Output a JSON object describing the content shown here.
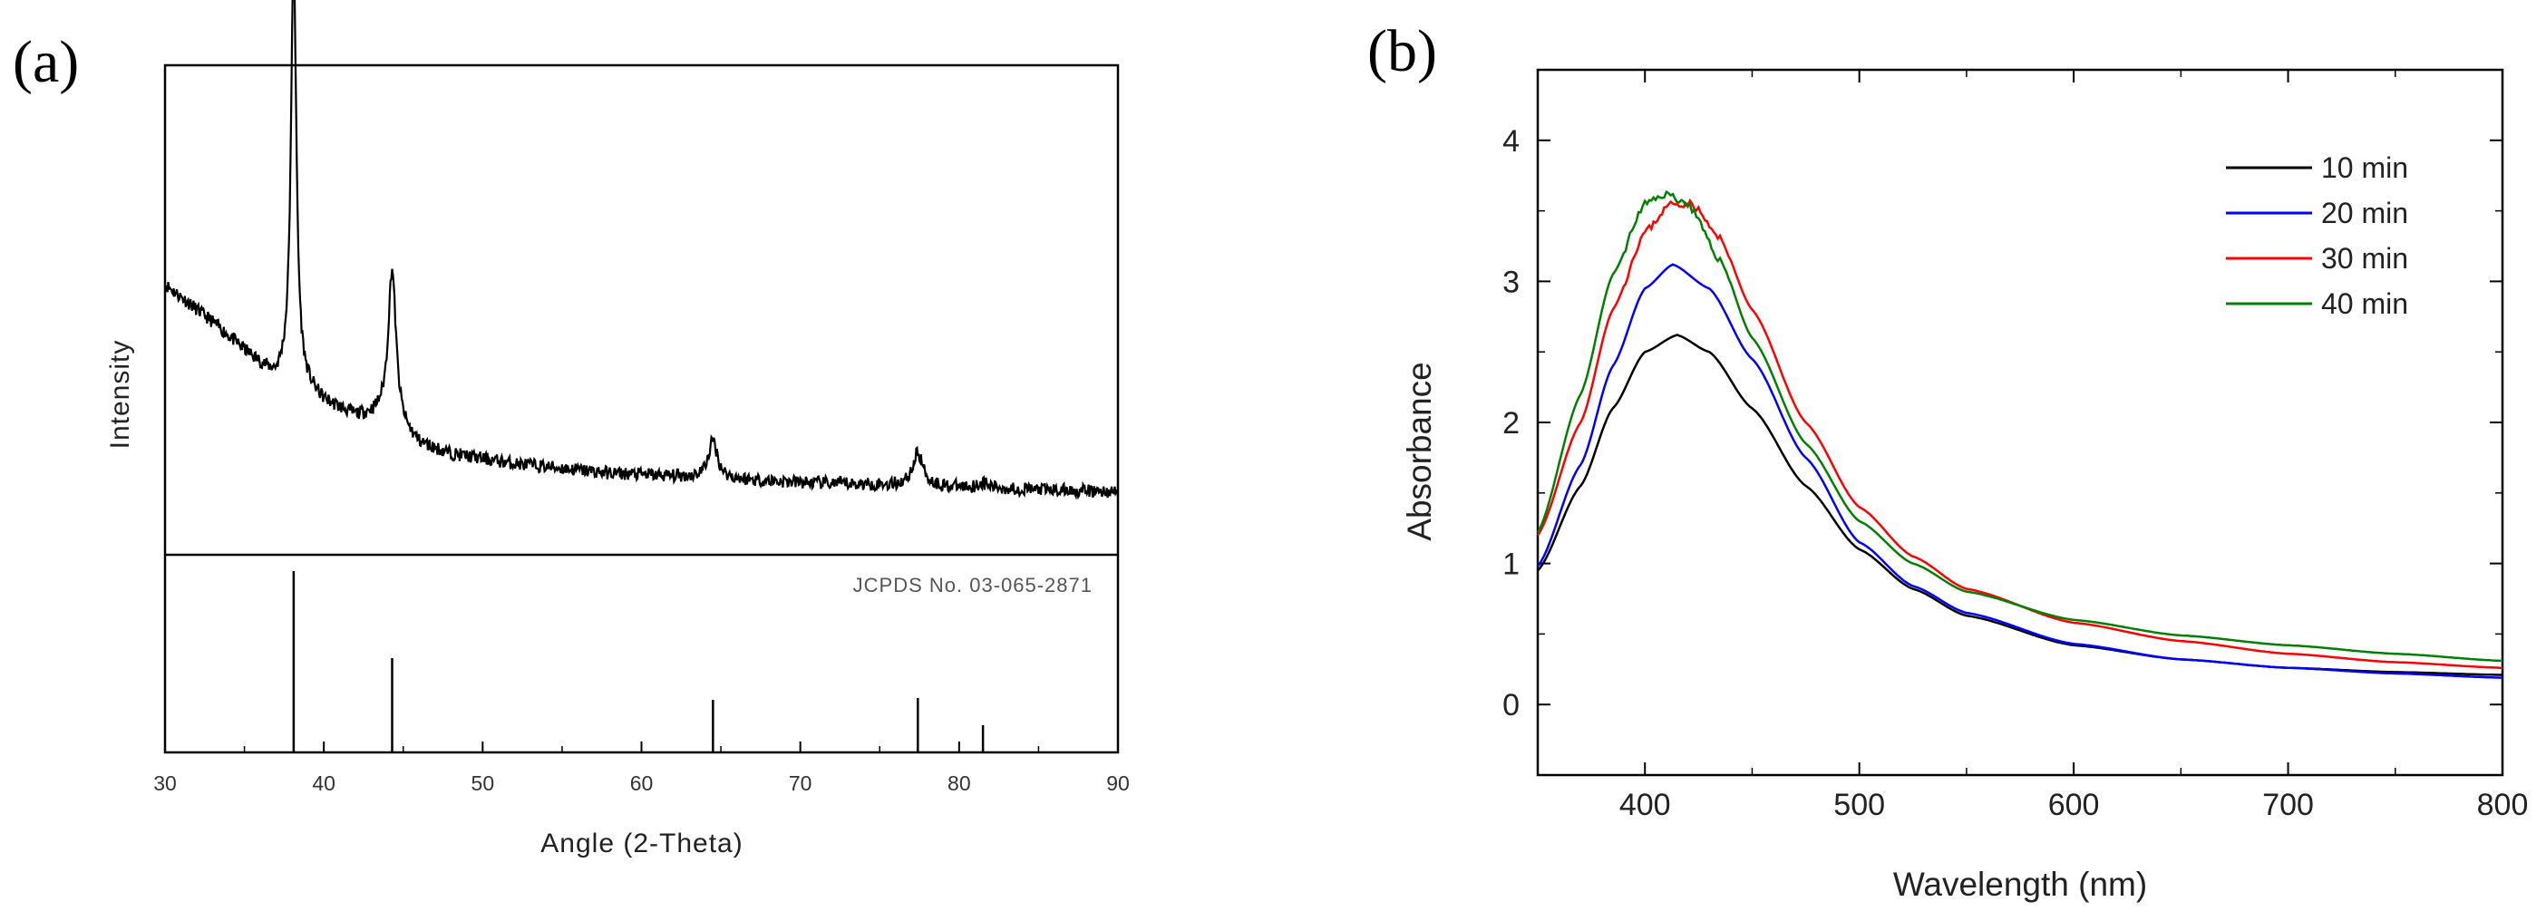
{
  "chart_data": [
    {
      "panel_label": "(a)",
      "type": "line",
      "subtype": "xrd-pattern-with-reference-sticks",
      "xlabel": "Angle (2-Theta)",
      "ylabel": "Intensity",
      "xlim": [
        30,
        90
      ],
      "x_ticks": [
        30,
        40,
        50,
        60,
        70,
        80,
        90
      ],
      "y_ticks_shown": false,
      "baseline": [
        [
          30,
          0.3
        ],
        [
          33,
          0.22
        ],
        [
          35,
          0.16
        ],
        [
          37,
          0.1
        ],
        [
          37.8,
          0.11
        ],
        [
          40,
          0.05
        ],
        [
          42,
          0.02
        ],
        [
          43.6,
          0.02
        ],
        [
          46,
          -0.04
        ],
        [
          48,
          -0.06
        ],
        [
          52,
          -0.08
        ],
        [
          58,
          -0.1
        ],
        [
          64,
          -0.11
        ],
        [
          70,
          -0.12
        ],
        [
          80,
          -0.13
        ],
        [
          90,
          -0.14
        ]
      ],
      "peaks": [
        {
          "two_theta": 38.1,
          "height": 0.9,
          "width": 0.2
        },
        {
          "two_theta": 44.3,
          "height": 0.33,
          "width": 0.3
        },
        {
          "two_theta": 64.5,
          "height": 0.08,
          "width": 0.35
        },
        {
          "two_theta": 77.4,
          "height": 0.07,
          "width": 0.4
        },
        {
          "two_theta": 81.5,
          "height": 0.01,
          "width": 0.4
        }
      ],
      "reference": {
        "label": "JCPDS No. 03-065-2871",
        "sticks": [
          {
            "two_theta": 38.1,
            "intensity": 100
          },
          {
            "two_theta": 44.3,
            "intensity": 52
          },
          {
            "two_theta": 64.5,
            "intensity": 29
          },
          {
            "two_theta": 77.4,
            "intensity": 30
          },
          {
            "two_theta": 81.5,
            "intensity": 15
          }
        ]
      }
    },
    {
      "panel_label": "(b)",
      "type": "line",
      "xlabel": "Wavelength (nm)",
      "ylabel": "Absorbance",
      "xlim": [
        350,
        800
      ],
      "ylim": [
        -0.5,
        4.5
      ],
      "x_ticks": [
        400,
        500,
        600,
        700,
        800
      ],
      "y_ticks": [
        0,
        1,
        2,
        3,
        4
      ],
      "legend_position": "top-right",
      "series": [
        {
          "name": "10 min",
          "color": "#000000",
          "x": [
            350,
            370,
            385,
            400,
            415,
            430,
            450,
            475,
            500,
            525,
            550,
            600,
            650,
            700,
            750,
            800
          ],
          "y": [
            0.95,
            1.55,
            2.1,
            2.5,
            2.62,
            2.5,
            2.1,
            1.55,
            1.1,
            0.82,
            0.63,
            0.42,
            0.32,
            0.26,
            0.23,
            0.21
          ]
        },
        {
          "name": "20 min",
          "color": "#0000ff",
          "x": [
            350,
            370,
            385,
            400,
            413,
            430,
            450,
            475,
            500,
            525,
            550,
            600,
            650,
            700,
            750,
            800
          ],
          "y": [
            0.98,
            1.7,
            2.4,
            2.95,
            3.12,
            2.95,
            2.45,
            1.75,
            1.15,
            0.84,
            0.65,
            0.43,
            0.32,
            0.26,
            0.22,
            0.19
          ]
        },
        {
          "name": "30 min",
          "color": "#ff0000",
          "x": [
            350,
            370,
            385,
            400,
            412,
            422,
            435,
            450,
            475,
            500,
            525,
            550,
            600,
            650,
            700,
            750,
            800
          ],
          "y": [
            1.2,
            2.0,
            2.8,
            3.35,
            3.55,
            3.55,
            3.3,
            2.8,
            2.0,
            1.4,
            1.05,
            0.82,
            0.58,
            0.45,
            0.36,
            0.3,
            0.26
          ]
        },
        {
          "name": "40 min",
          "color": "#008000",
          "x": [
            350,
            370,
            385,
            400,
            410,
            420,
            435,
            450,
            475,
            500,
            525,
            550,
            600,
            650,
            700,
            750,
            800
          ],
          "y": [
            1.22,
            2.2,
            3.05,
            3.55,
            3.62,
            3.55,
            3.15,
            2.6,
            1.85,
            1.3,
            1.0,
            0.8,
            0.6,
            0.49,
            0.42,
            0.36,
            0.31
          ]
        }
      ]
    }
  ]
}
